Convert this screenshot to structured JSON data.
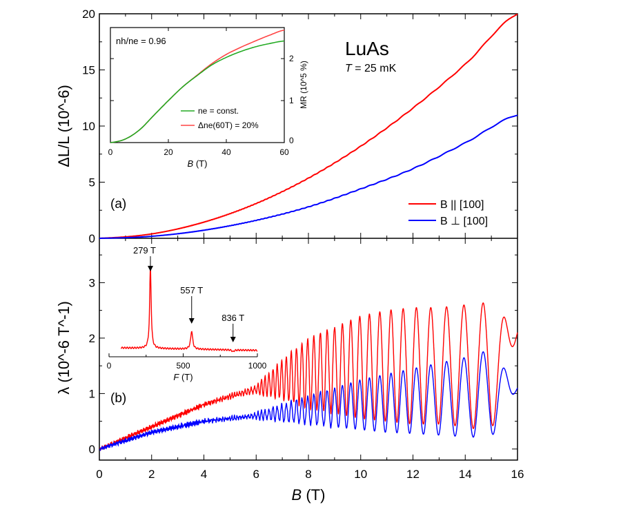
{
  "chart_data": [
    {
      "panel": "(a)",
      "type": "line",
      "title_material": "LuAs",
      "temperature_label": "T = 25 mK",
      "xlabel": "B (T)",
      "ylabel": "ΔL/L (10^-6)",
      "xlim": [
        0,
        16
      ],
      "ylim": [
        0,
        20
      ],
      "xticks": [
        0,
        2,
        4,
        6,
        8,
        10,
        12,
        14,
        16
      ],
      "yticks": [
        0,
        5,
        10,
        15,
        20
      ],
      "legend_placement": "lower-right",
      "series": [
        {
          "name": "B || [100]",
          "color": "#ff0000",
          "x": [
            0,
            2,
            4,
            6,
            8,
            10,
            12,
            14,
            16
          ],
          "y": [
            0,
            0.39,
            1.44,
            3.1,
            5.36,
            8.2,
            11.6,
            15.5,
            20
          ]
        },
        {
          "name": "B ⊥ [100]",
          "color": "#0000ff",
          "x": [
            0,
            2,
            4,
            6,
            8,
            10,
            12,
            14,
            16
          ],
          "y": [
            0,
            0.18,
            0.72,
            1.6,
            2.8,
            4.4,
            6.2,
            8.5,
            11
          ]
        }
      ]
    },
    {
      "panel": "(b)",
      "type": "line",
      "xlabel": "B (T)",
      "ylabel": "λ (10^-6 T^-1)",
      "xlim": [
        0,
        16
      ],
      "ylim": [
        -0.2,
        3.8
      ],
      "yticks": [
        0,
        1,
        2,
        3
      ],
      "oscillation_frequency_T": 279,
      "series": [
        {
          "name": "B || [100]",
          "color": "#ff0000",
          "x": [
            0,
            1,
            2,
            3,
            4,
            5,
            6,
            7,
            8,
            9,
            10,
            11,
            12,
            13,
            14,
            15,
            16
          ],
          "upper": [
            0,
            0.22,
            0.42,
            0.62,
            0.82,
            0.98,
            1.15,
            1.6,
            2.0,
            2.2,
            2.4,
            2.5,
            2.55,
            2.55,
            2.6,
            2.65,
            2.1
          ],
          "lower": [
            0,
            0.18,
            0.38,
            0.58,
            0.78,
            0.92,
            1.0,
            0.9,
            0.75,
            0.65,
            0.55,
            0.5,
            0.45,
            0.45,
            0.4,
            0.3,
            2.1
          ]
        },
        {
          "name": "B ⊥ [100]",
          "color": "#0000ff",
          "x": [
            0,
            1,
            2,
            3,
            4,
            5,
            6,
            7,
            8,
            9,
            10,
            11,
            12,
            13,
            14,
            15,
            16
          ],
          "upper": [
            0,
            0.17,
            0.32,
            0.42,
            0.52,
            0.57,
            0.65,
            0.8,
            0.95,
            1.1,
            1.25,
            1.35,
            1.45,
            1.55,
            1.65,
            1.8,
            1.1
          ],
          "lower": [
            0,
            0.13,
            0.28,
            0.38,
            0.48,
            0.53,
            0.55,
            0.5,
            0.45,
            0.4,
            0.35,
            0.3,
            0.28,
            0.25,
            0.22,
            0.2,
            1.1
          ]
        }
      ]
    },
    {
      "panel": "inset-a",
      "type": "line",
      "annotation": "nh/ne = 0.96",
      "xlabel": "B (T)",
      "ylabel": "MR (10^5 %)",
      "xlim": [
        0,
        60
      ],
      "ylim": [
        0,
        2.74
      ],
      "xticks": [
        0,
        20,
        40,
        60
      ],
      "yticks": [
        0,
        1,
        2
      ],
      "legend_placement": "lower-right",
      "series": [
        {
          "name": "ne = const.",
          "color": "#22aa22",
          "x": [
            0,
            5,
            10,
            15,
            20,
            25,
            30,
            35,
            40,
            45,
            50,
            55,
            60
          ],
          "y": [
            0,
            0.08,
            0.3,
            0.65,
            1.0,
            1.33,
            1.6,
            1.85,
            2.03,
            2.17,
            2.28,
            2.36,
            2.42
          ]
        },
        {
          "name": "Δne(60T) = 20%",
          "color": "#ff4444",
          "x": [
            0,
            5,
            10,
            15,
            20,
            25,
            30,
            35,
            40,
            45,
            50,
            55,
            60
          ],
          "y": [
            0,
            0.08,
            0.3,
            0.65,
            1.0,
            1.33,
            1.61,
            1.88,
            2.1,
            2.27,
            2.42,
            2.56,
            2.68
          ]
        }
      ]
    },
    {
      "panel": "inset-b",
      "type": "line",
      "xlabel": "F (T)",
      "xlim": [
        0,
        1000
      ],
      "xticks": [
        0,
        500,
        1000
      ],
      "peak_labels": [
        "279 T",
        "557 T",
        "836 T"
      ],
      "peaks": [
        279,
        557,
        836
      ],
      "peak_heights": [
        1.0,
        0.3,
        0.08
      ],
      "baseline": 0.1,
      "x_start": 80,
      "color": "#ff0000"
    }
  ],
  "labels": {
    "material": "LuAs",
    "temperature_T": "T",
    "temperature_rest": " = 25 mK",
    "panel_a": "(a)",
    "panel_b": "(b)",
    "legend_1": "B || [100]",
    "legend_2": "B ⊥ [100]",
    "inset_legend_1": "ne = const.",
    "inset_legend_2": "Δne(60T) = 20%",
    "inset_ratio": "nh/ne = 0.96"
  }
}
